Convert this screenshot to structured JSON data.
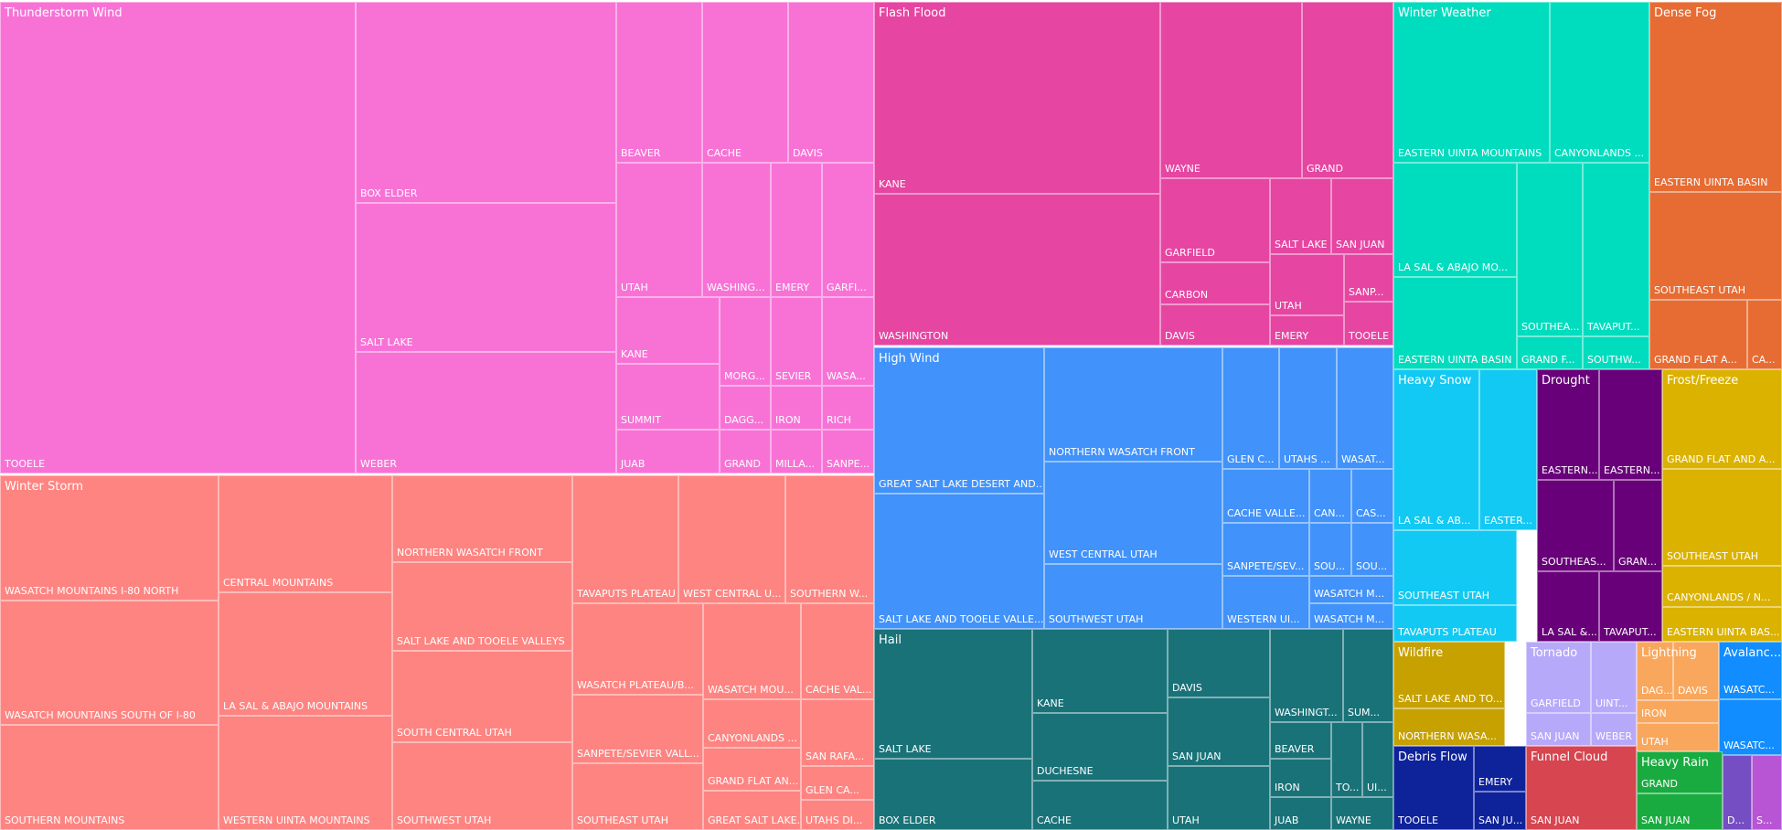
{
  "chart_data": {
    "type": "treemap",
    "groups": [
      {
        "name": "Thunderstorm Wind",
        "color": "#F872D6",
        "leaves": [
          "TOOELE",
          "BOX ELDER",
          "SALT LAKE",
          "WEBER",
          "BEAVER",
          "CACHE",
          "DAVIS",
          "UTAH",
          "WASHING...",
          "EMERY",
          "GARFI...",
          "KANE",
          "SUMMIT",
          "MORG...",
          "SEVIER",
          "WASA...",
          "JUAB",
          "DAGG...",
          "IRON",
          "RICH",
          "GRAND",
          "MILLA...",
          "SANPE..."
        ]
      },
      {
        "name": "Flash Flood",
        "color": "#E645A2",
        "leaves": [
          "KANE",
          "WASHINGTON",
          "WAYNE",
          "GRAND",
          "GARFIELD",
          "SALT LAKE",
          "SAN JUAN",
          "CARBON",
          "UTAH",
          "SANP...",
          "DAVIS",
          "EMERY",
          "TOOELE"
        ]
      },
      {
        "name": "Winter Weather",
        "color": "#00DCBE",
        "leaves": [
          "EASTERN UINTA MOUNTAINS",
          "CANYONLANDS ...",
          "LA SAL & ABAJO MO...",
          "EASTERN UINTA BASIN",
          "SOUTHEA...",
          "TAVAPUT...",
          "GRAND F...",
          "SOUTHW..."
        ]
      },
      {
        "name": "Dense Fog",
        "color": "#E66C33",
        "leaves": [
          "EASTERN UINTA BASIN",
          "SOUTHEAST UTAH",
          "GRAND FLAT A...",
          "CA..."
        ]
      },
      {
        "name": "Winter Storm",
        "color": "#FE8481",
        "leaves": [
          "WASATCH MOUNTAINS I-80 NORTH",
          "WASATCH MOUNTAINS SOUTH OF I-80",
          "SOUTHERN MOUNTAINS",
          "CENTRAL MOUNTAINS",
          "LA SAL & ABAJO MOUNTAINS",
          "WESTERN UINTA MOUNTAINS",
          "NORTHERN WASATCH FRONT",
          "SALT LAKE AND TOOELE VALLEYS",
          "SOUTH CENTRAL UTAH",
          "SOUTHWEST UTAH",
          "TAVAPUTS PLATEAU",
          "WEST CENTRAL U...",
          "SOUTHERN W...",
          "WASATCH PLATEAU/B...",
          "WASATCH MOU...",
          "CACHE VAL...",
          "SANPETE/SEVIER VALL...",
          "CANYONLANDS ...",
          "SAN RAFA...",
          "GRAND FLAT AN...",
          "GLEN CA...",
          "SOUTHEAST UTAH",
          "GREAT SALT LAKE...",
          "UTAHS DI..."
        ]
      },
      {
        "name": "High Wind",
        "color": "#4192FA",
        "leaves": [
          "GREAT SALT LAKE DESERT AND...",
          "SALT LAKE AND TOOELE VALLE...",
          "NORTHERN WASATCH FRONT",
          "WEST CENTRAL UTAH",
          "SOUTHWEST UTAH",
          "GLEN C...",
          "UTAHS ...",
          "WASAT...",
          "CACHE VALLE...",
          "CAN...",
          "CAS...",
          "SANPETE/SEV...",
          "SOU...",
          "SOU...",
          "WASATCH M...",
          "WESTERN UI...",
          "WASATCH M..."
        ]
      },
      {
        "name": "Heavy Snow",
        "color": "#12C9F3",
        "leaves": [
          "LA SAL & AB...",
          "EASTER...",
          "SOUTHEAST UTAH",
          "TAVAPUTS PLATEAU"
        ]
      },
      {
        "name": "Drought",
        "color": "#680079",
        "leaves": [
          "EASTERN...",
          "EASTERN...",
          "SOUTHEAS...",
          "GRAN...",
          "LA SAL &...",
          "TAVAPUT..."
        ]
      },
      {
        "name": "Frost/Freeze",
        "color": "#DBB200",
        "leaves": [
          "GRAND FLAT AND A...",
          "SOUTHEAST UTAH",
          "CANYONLANDS / N...",
          "EASTERN UINTA BAS..."
        ]
      },
      {
        "name": "Hail",
        "color": "#197278",
        "leaves": [
          "SALT LAKE",
          "BOX ELDER",
          "KANE",
          "DUCHESNE",
          "CACHE",
          "DAVIS",
          "SAN JUAN",
          "UTAH",
          "WASHINGT...",
          "SUM...",
          "BEAVER",
          "IRON",
          "TO...",
          "UI...",
          "JUAB",
          "WAYNE"
        ]
      },
      {
        "name": "Wildfire",
        "color": "#C6A100",
        "leaves": [
          "SALT LAKE AND TO...",
          "NORTHERN WASA..."
        ]
      },
      {
        "name": "Tornado",
        "color": "#B7A9FA",
        "leaves": [
          "GARFIELD",
          "UINT...",
          "SAN JUAN",
          "WEBER"
        ]
      },
      {
        "name": "Lightning",
        "color": "#F9A75D",
        "leaves": [
          "DAG...",
          "DAVIS",
          "IRON",
          "UTAH"
        ]
      },
      {
        "name": "Avalanc...",
        "color": "#118DFF",
        "leaves": [
          "WASATC...",
          "WASATC..."
        ]
      },
      {
        "name": "Debris Flow",
        "color": "#0E229A",
        "leaves": [
          "TOOELE",
          "EMERY",
          "SAN JU..."
        ]
      },
      {
        "name": "Funnel Cloud",
        "color": "#D64550",
        "leaves": [
          "SAN JUAN"
        ]
      },
      {
        "name": "Heavy Rain",
        "color": "#1AAB40",
        "leaves": [
          "GRAND",
          "SAN JUAN"
        ]
      },
      {
        "name": "",
        "color": "#744EC2",
        "leaves": [
          "D..."
        ]
      },
      {
        "name": "",
        "color": "#B755D4",
        "leaves": [
          "S..."
        ]
      }
    ]
  }
}
